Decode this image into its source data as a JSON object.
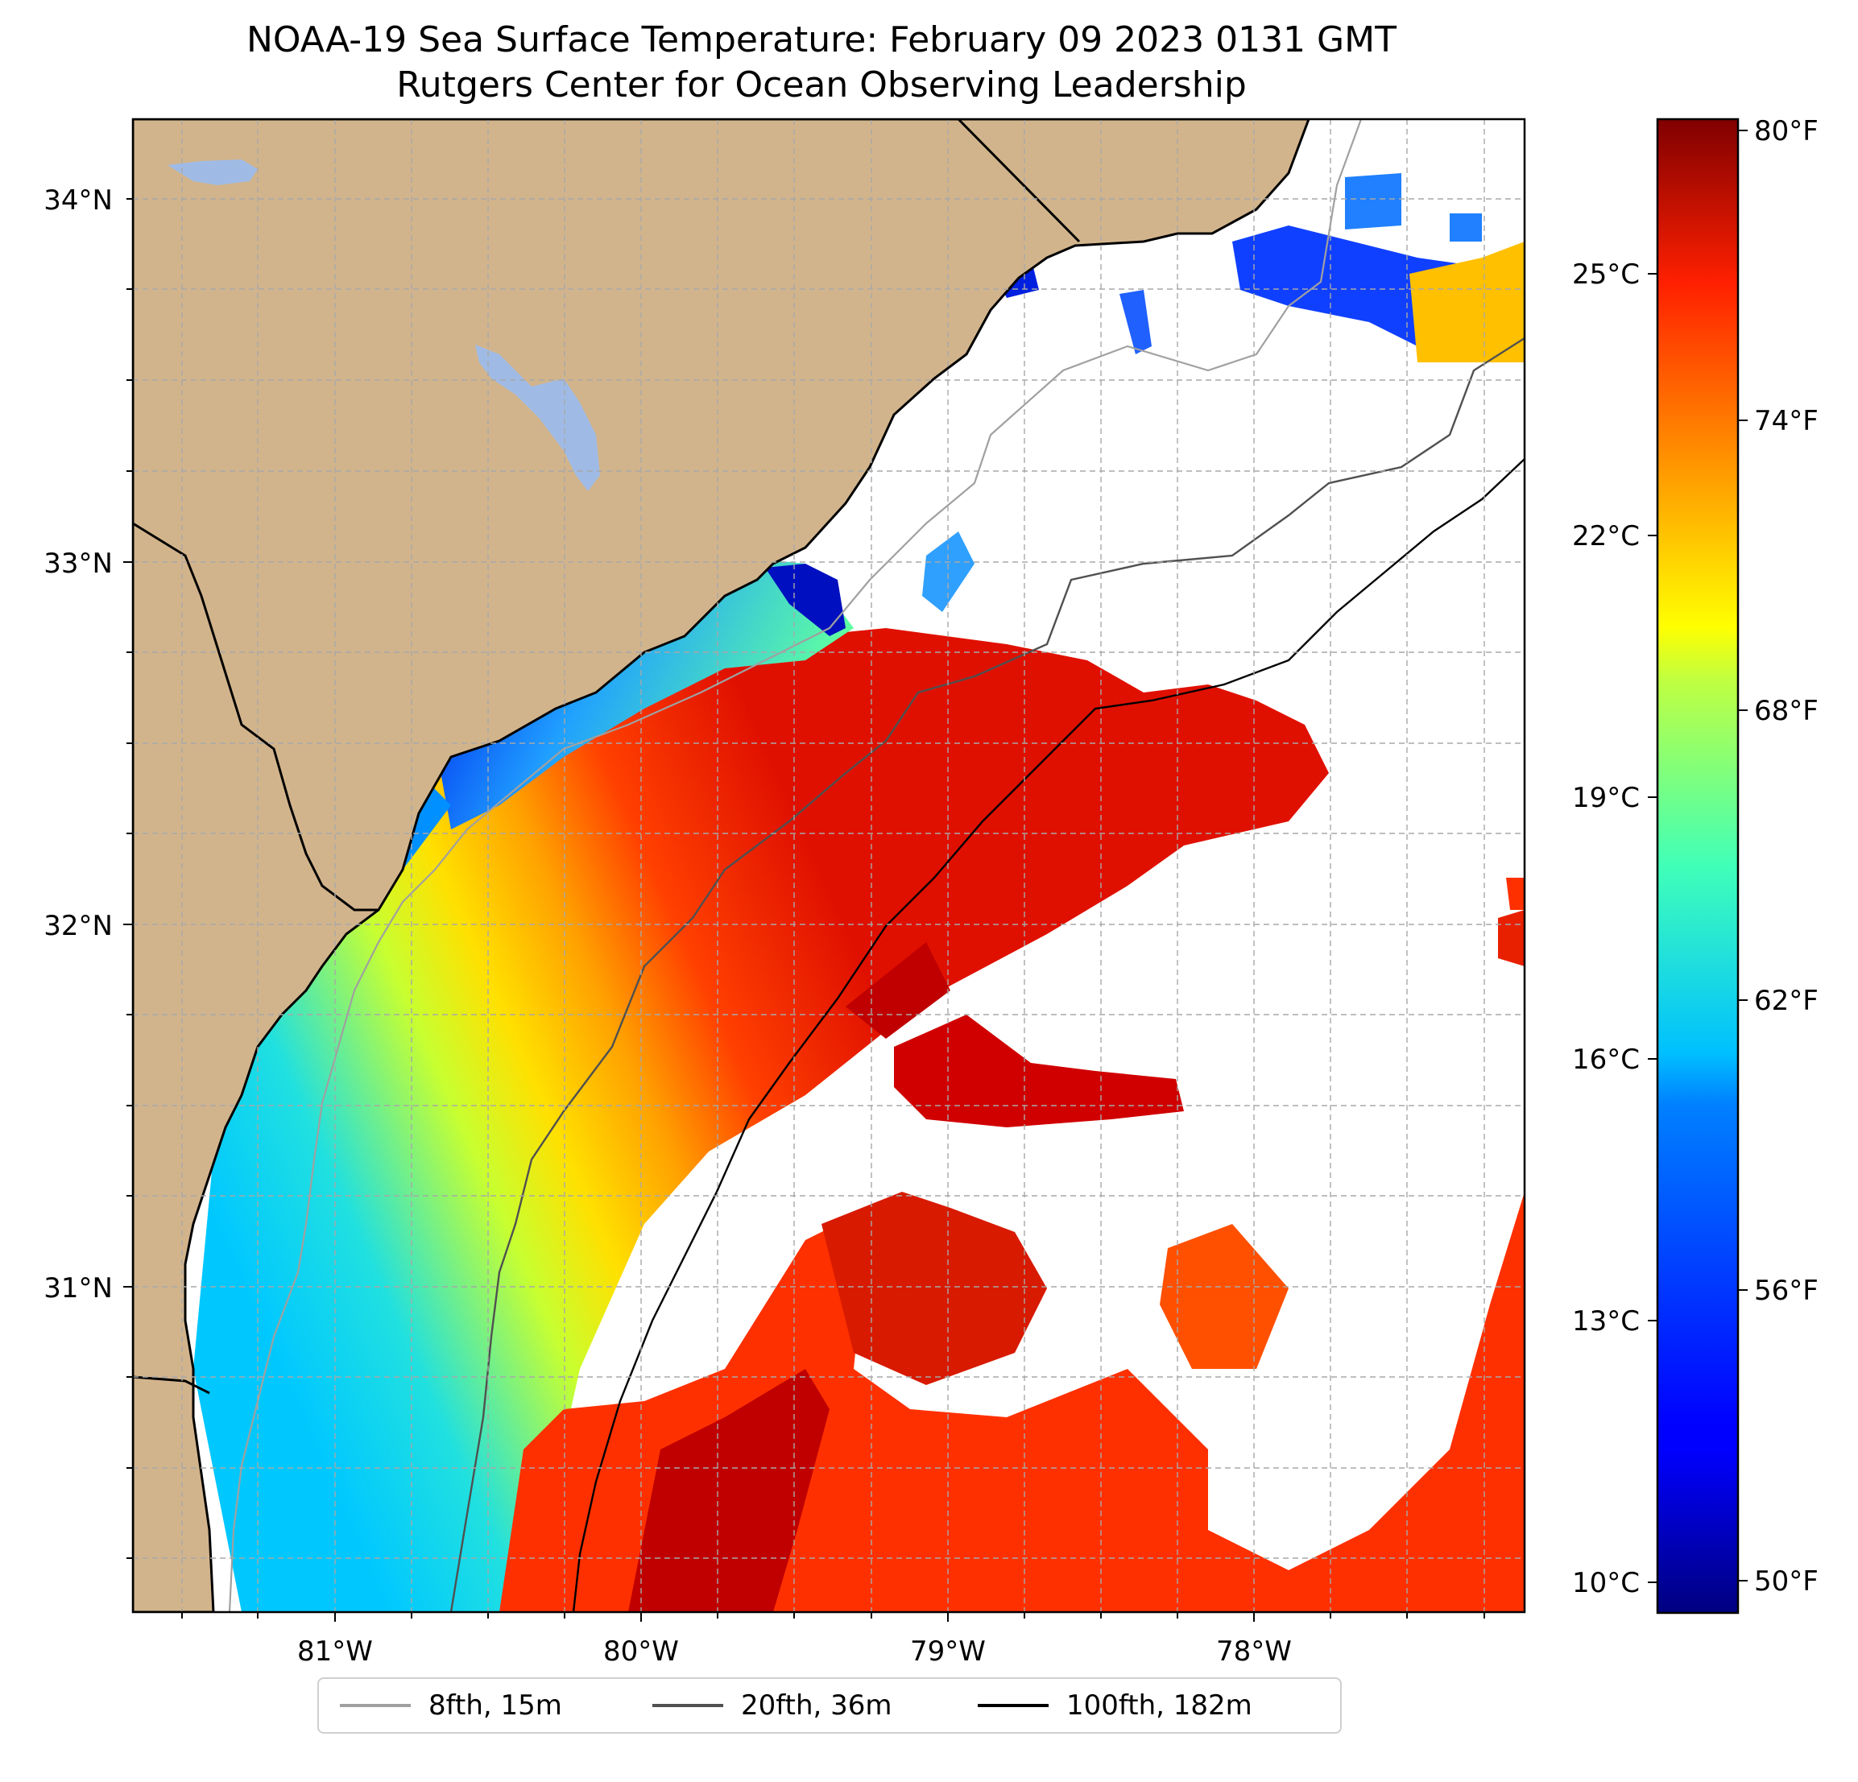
{
  "title": "NOAA-19 Sea Surface Temperature: February 09 2023 0131 GMT",
  "subtitle": "Rutgers Center for Ocean Observing Leadership",
  "map": {
    "lon_labels": [
      "81°W",
      "80°W",
      "79°W",
      "78°W"
    ],
    "lat_labels": [
      "34°N",
      "33°N",
      "32°N",
      "31°N"
    ],
    "lon_range": [
      -81.68,
      -77.12
    ],
    "lat_range": [
      30.07,
      34.22
    ],
    "land_color": "#d2b48c",
    "lake_color": "#9fbbe5",
    "gridlines": true
  },
  "colorbar": {
    "celsius_labels": [
      "25°C",
      "22°C",
      "19°C",
      "16°C",
      "13°C",
      "10°C"
    ],
    "fahrenheit_labels": [
      "80°F",
      "74°F",
      "68°F",
      "62°F",
      "56°F",
      "50°F"
    ],
    "fahrenheit_range": [
      49.3,
      80.5
    ],
    "colormap": "jet"
  },
  "legend": [
    {
      "label": "8fth, 15m",
      "color": "#a0a0a0"
    },
    {
      "label": "20fth, 36m",
      "color": "#505050"
    },
    {
      "label": "100fth, 182m",
      "color": "#000000"
    }
  ]
}
